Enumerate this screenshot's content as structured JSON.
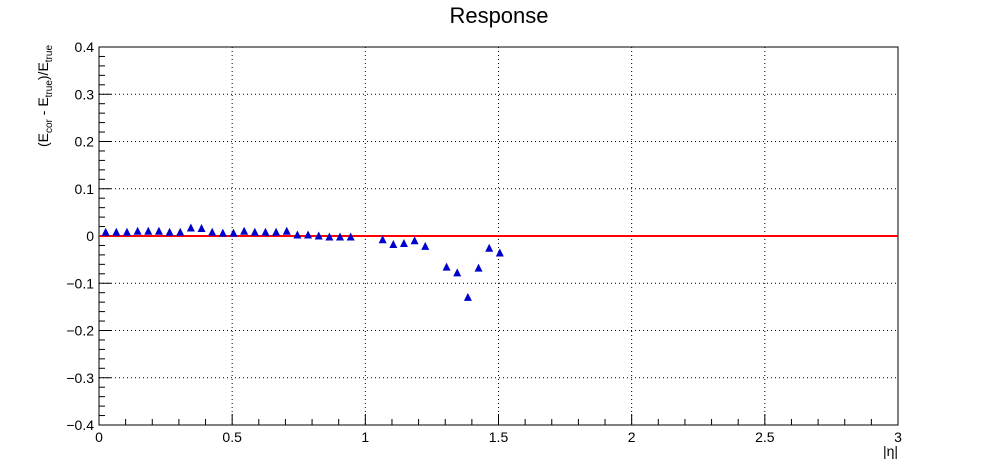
{
  "chart_data": {
    "type": "scatter",
    "title": "Response",
    "xlabel": "|η|",
    "ylabel": {
      "open": "(E",
      "sub1": "cor",
      "mid": " - E",
      "sub2": "true",
      "close": ")/E",
      "sub3": "true"
    },
    "xlim": [
      0,
      3
    ],
    "ylim": [
      -0.4,
      0.4
    ],
    "x_ticks": [
      0,
      0.5,
      1,
      1.5,
      2,
      2.5,
      3
    ],
    "x_tick_labels": [
      "0",
      "0.5",
      "1",
      "1.5",
      "2",
      "2.5",
      "3"
    ],
    "y_ticks": [
      -0.4,
      -0.3,
      -0.2,
      -0.1,
      0,
      0.1,
      0.2,
      0.3,
      0.4
    ],
    "y_tick_labels": [
      "−0.4",
      "−0.3",
      "−0.2",
      "−0.1",
      "0",
      "0.1",
      "0.2",
      "0.3",
      "0.4"
    ],
    "grid": true,
    "reference_line": {
      "y": 0,
      "color": "#ff0000"
    },
    "series": [
      {
        "marker": "triangle",
        "color": "#0000cc",
        "points": [
          [
            0.025,
            0.008
          ],
          [
            0.065,
            0.008
          ],
          [
            0.105,
            0.008
          ],
          [
            0.145,
            0.01
          ],
          [
            0.185,
            0.01
          ],
          [
            0.225,
            0.01
          ],
          [
            0.265,
            0.008
          ],
          [
            0.305,
            0.008
          ],
          [
            0.345,
            0.017
          ],
          [
            0.385,
            0.016
          ],
          [
            0.425,
            0.008
          ],
          [
            0.465,
            0.006
          ],
          [
            0.505,
            0.006
          ],
          [
            0.545,
            0.01
          ],
          [
            0.585,
            0.008
          ],
          [
            0.625,
            0.008
          ],
          [
            0.665,
            0.008
          ],
          [
            0.705,
            0.01
          ],
          [
            0.745,
            0.002
          ],
          [
            0.785,
            0.002
          ],
          [
            0.825,
            0.0
          ],
          [
            0.865,
            -0.002
          ],
          [
            0.905,
            -0.002
          ],
          [
            0.945,
            -0.002
          ],
          [
            1.065,
            -0.008
          ],
          [
            1.105,
            -0.018
          ],
          [
            1.145,
            -0.016
          ],
          [
            1.185,
            -0.01
          ],
          [
            1.225,
            -0.022
          ],
          [
            1.305,
            -0.066
          ],
          [
            1.345,
            -0.078
          ],
          [
            1.385,
            -0.13
          ],
          [
            1.425,
            -0.068
          ],
          [
            1.465,
            -0.026
          ],
          [
            1.505,
            -0.036
          ]
        ]
      }
    ]
  }
}
